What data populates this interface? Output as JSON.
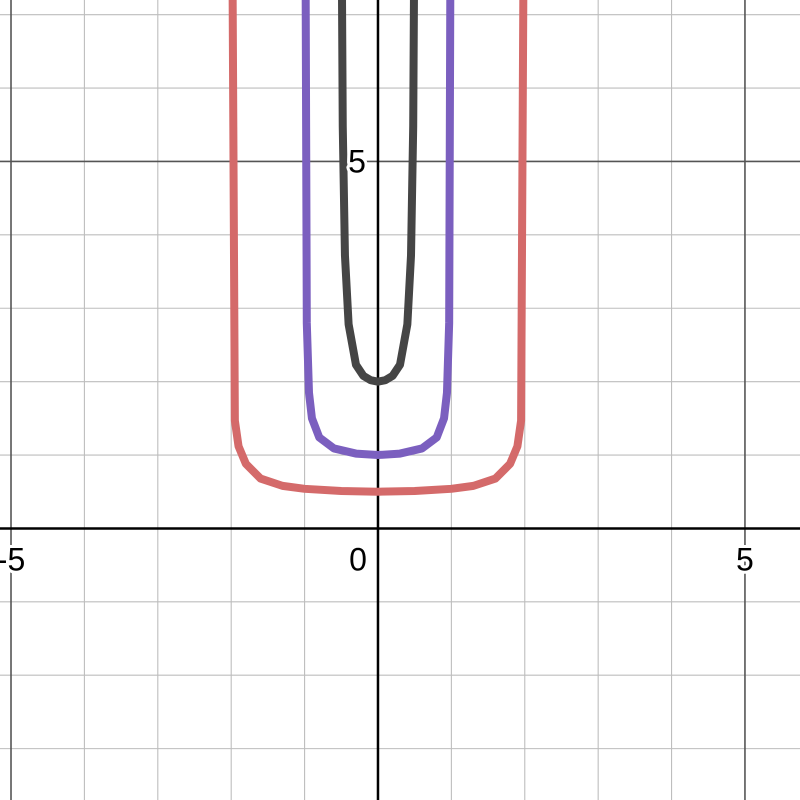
{
  "chart_data": {
    "type": "line",
    "title": "",
    "xlabel": "",
    "ylabel": "",
    "xlim": [
      -5.15,
      5.75
    ],
    "ylim": [
      -3.7,
      7.2
    ],
    "grid": true,
    "grid_step": 1,
    "major_grid_step": 5,
    "tick_labels": {
      "x": [
        {
          "value": -5,
          "label": "-5"
        },
        {
          "value": 0,
          "label": "0"
        },
        {
          "value": 5,
          "label": "5"
        }
      ],
      "y": [
        {
          "value": 5,
          "label": "5"
        }
      ]
    },
    "series": [
      {
        "color": "#d46a6a",
        "x": [
          -1.98,
          -1.95,
          -1.9,
          -1.8,
          -1.6,
          -1.3,
          -1.0,
          -0.5,
          0,
          0.5,
          1.0,
          1.3,
          1.6,
          1.8,
          1.9,
          1.95,
          1.98
        ],
        "y": [
          7.2,
          1.47,
          1.12,
          0.88,
          0.68,
          0.58,
          0.54,
          0.51,
          0.5,
          0.51,
          0.54,
          0.58,
          0.68,
          0.88,
          1.12,
          1.47,
          7.2
        ]
      },
      {
        "color": "#7b5fbf",
        "x": [
          -0.985,
          -0.97,
          -0.94,
          -0.9,
          -0.8,
          -0.6,
          -0.3,
          0,
          0.3,
          0.6,
          0.8,
          0.9,
          0.94,
          0.97,
          0.985
        ],
        "y": [
          7.2,
          2.8,
          1.85,
          1.5,
          1.24,
          1.09,
          1.02,
          1.0,
          1.02,
          1.09,
          1.24,
          1.5,
          1.85,
          2.8,
          7.2
        ]
      },
      {
        "color": "#454545",
        "x": [
          -0.49,
          -0.48,
          -0.45,
          -0.4,
          -0.3,
          -0.2,
          -0.1,
          0,
          0.1,
          0.2,
          0.3,
          0.4,
          0.45,
          0.48,
          0.49
        ],
        "y": [
          7.2,
          5.48,
          3.72,
          2.78,
          2.23,
          2.08,
          2.02,
          2.0,
          2.02,
          2.08,
          2.23,
          2.78,
          3.72,
          5.48,
          7.2
        ]
      }
    ]
  }
}
